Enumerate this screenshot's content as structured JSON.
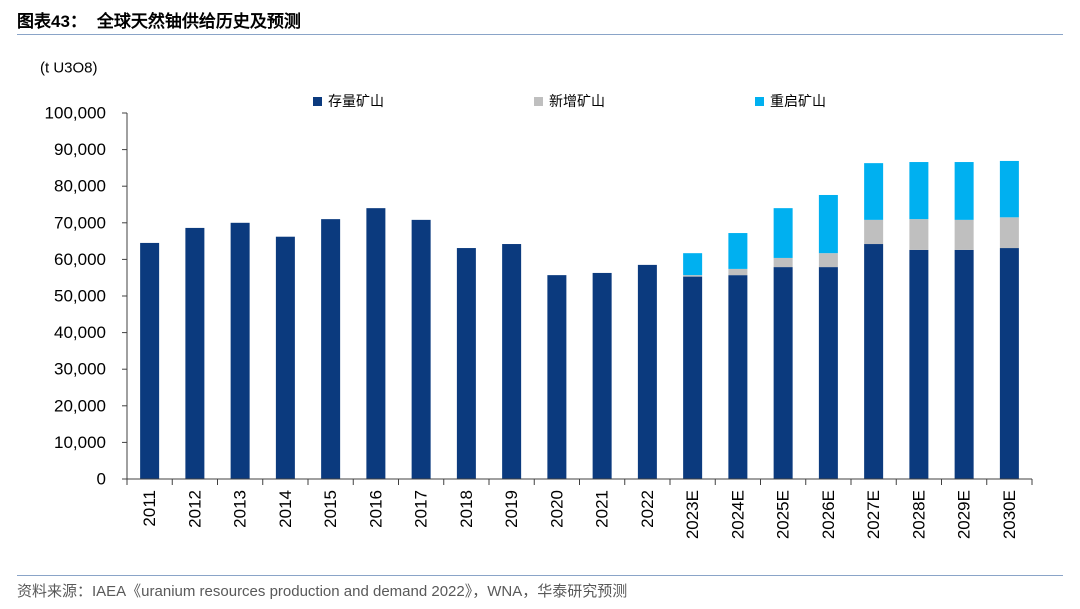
{
  "header": {
    "figure_label": "图表43："
  },
  "footer": {
    "source": "资料来源：IAEA《uranium resources production and demand 2022》，WNA，华泰研究预测"
  },
  "chart_data": {
    "type": "bar",
    "stacked": true,
    "title": "全球天然铀供给历史及预测",
    "ylabel": "(t U3O8)",
    "categories": [
      "2011",
      "2012",
      "2013",
      "2014",
      "2015",
      "2016",
      "2017",
      "2018",
      "2019",
      "2020",
      "2021",
      "2022",
      "2023E",
      "2024E",
      "2025E",
      "2026E",
      "2027E",
      "2028E",
      "2029E",
      "2030E"
    ],
    "series": [
      {
        "name": "存量矿山",
        "color": "#0b3a7e",
        "values": [
          64500,
          68600,
          70000,
          66200,
          71000,
          74000,
          70800,
          63100,
          64200,
          55700,
          56300,
          58500,
          55300,
          55700,
          57900,
          57900,
          64200,
          62600,
          62600,
          63100
        ]
      },
      {
        "name": "新增矿山",
        "color": "#bfbfbf",
        "values": [
          0,
          0,
          0,
          0,
          0,
          0,
          0,
          0,
          0,
          0,
          0,
          0,
          400,
          1700,
          2500,
          3800,
          6600,
          8400,
          8200,
          8400
        ]
      },
      {
        "name": "重启矿山",
        "color": "#00b0f0",
        "values": [
          0,
          0,
          0,
          0,
          0,
          0,
          0,
          0,
          0,
          0,
          0,
          0,
          6000,
          9800,
          13600,
          15900,
          15500,
          15600,
          15800,
          15400
        ]
      }
    ],
    "ylim": [
      0,
      100000
    ],
    "yticks": [
      0,
      10000,
      20000,
      30000,
      40000,
      50000,
      60000,
      70000,
      80000,
      90000,
      100000
    ],
    "ytick_labels": [
      "0",
      "10,000",
      "20,000",
      "30,000",
      "40,000",
      "50,000",
      "60,000",
      "70,000",
      "80,000",
      "90,000",
      "100,000"
    ],
    "grid": false,
    "legend": "top"
  }
}
